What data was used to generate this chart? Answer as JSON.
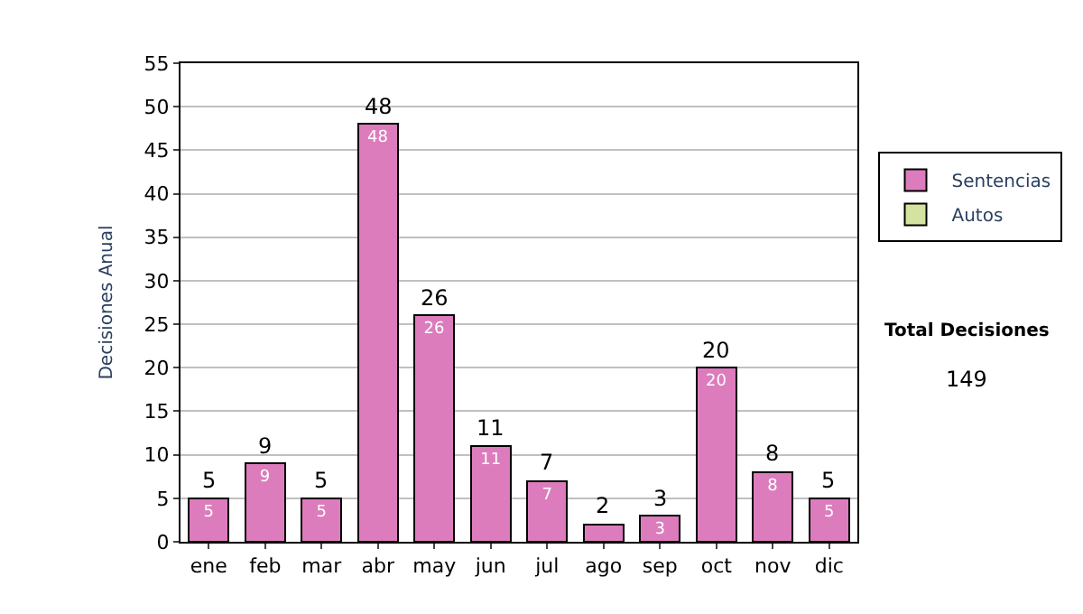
{
  "chart_data": {
    "type": "bar",
    "stacked": true,
    "ylabel": "Decisiones Anual",
    "categories": [
      "ene",
      "feb",
      "mar",
      "abr",
      "may",
      "jun",
      "jul",
      "ago",
      "sep",
      "oct",
      "nov",
      "dic"
    ],
    "series": [
      {
        "name": "Sentencias",
        "color": "#dc7cbc",
        "values": [
          5,
          9,
          5,
          48,
          26,
          11,
          7,
          2,
          3,
          20,
          8,
          5
        ],
        "value_labels": [
          "5",
          "9",
          "5",
          "48",
          "26",
          "11",
          "7",
          null,
          "3",
          "20",
          "8",
          "5"
        ]
      },
      {
        "name": "Autos",
        "color": "#d4e4a0",
        "values": [
          null,
          null,
          null,
          null,
          null,
          null,
          null,
          null,
          null,
          null,
          null,
          null
        ]
      }
    ],
    "totals": [
      "5",
      "9",
      "5",
      "48",
      "26",
      "11",
      "7",
      "2",
      "3",
      "20",
      "8",
      "5"
    ],
    "ylim": [
      0,
      55
    ],
    "yticks": [
      0,
      5,
      10,
      15,
      20,
      25,
      30,
      35,
      40,
      45,
      50,
      55
    ],
    "grid": "y",
    "legend": "right",
    "annotations": [
      "Total Decisiones",
      "149"
    ]
  }
}
